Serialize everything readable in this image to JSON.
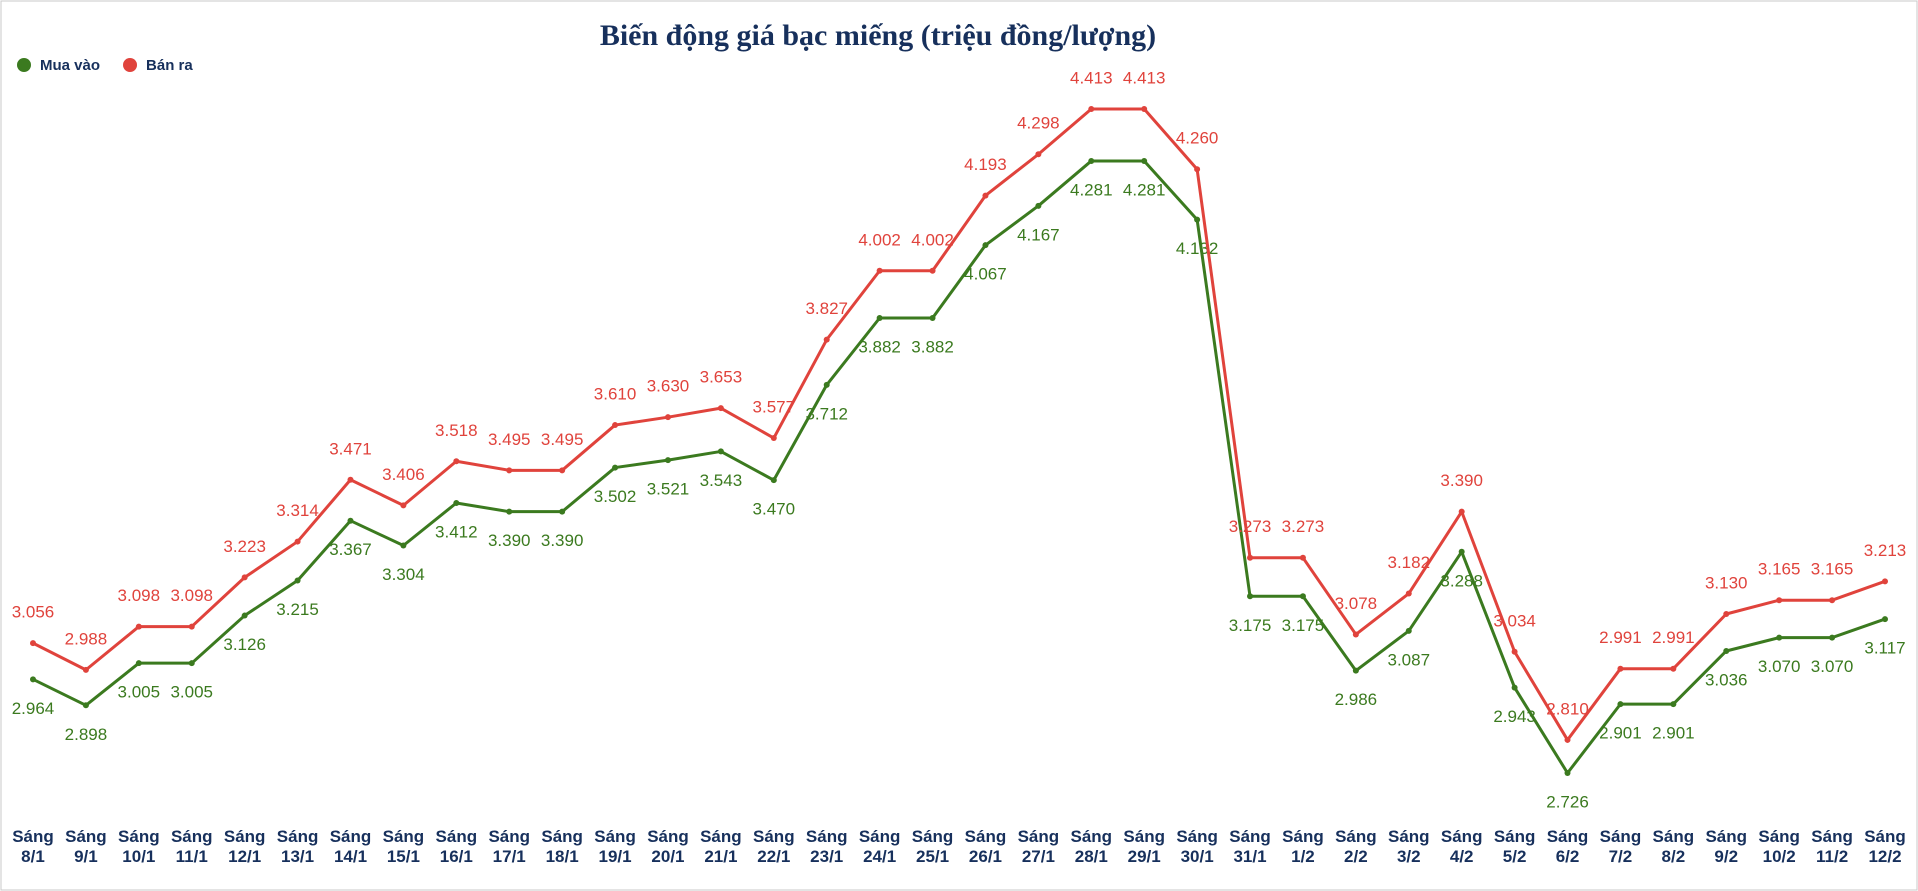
{
  "chart_data": {
    "type": "line",
    "title": "Biến động giá bạc miếng (triệu đồng/lượng)",
    "categories": [
      "Sáng 8/1",
      "Sáng 9/1",
      "Sáng 10/1",
      "Sáng 11/1",
      "Sáng 12/1",
      "Sáng 13/1",
      "Sáng 14/1",
      "Sáng 15/1",
      "Sáng 16/1",
      "Sáng 17/1",
      "Sáng 18/1",
      "Sáng 19/1",
      "Sáng 20/1",
      "Sáng 21/1",
      "Sáng 22/1",
      "Sáng 23/1",
      "Sáng 24/1",
      "Sáng 25/1",
      "Sáng 26/1",
      "Sáng 27/1",
      "Sáng 28/1",
      "Sáng 29/1",
      "Sáng 30/1",
      "Sáng 31/1",
      "Sáng 1/2",
      "Sáng 2/2",
      "Sáng 3/2",
      "Sáng 4/2",
      "Sáng 5/2",
      "Sáng 6/2",
      "Sáng 7/2",
      "Sáng 8/2",
      "Sáng 9/2",
      "Sáng 10/2",
      "Sáng 11/2",
      "Sáng 12/2"
    ],
    "series": [
      {
        "name": "Mua vào",
        "color": "#3b7a1f",
        "values": [
          2.964,
          2.898,
          3.005,
          3.005,
          3.126,
          3.215,
          3.367,
          3.304,
          3.412,
          3.39,
          3.39,
          3.502,
          3.521,
          3.543,
          3.47,
          3.712,
          3.882,
          3.882,
          4.067,
          4.167,
          4.281,
          4.281,
          4.132,
          3.175,
          3.175,
          2.986,
          3.087,
          3.288,
          2.943,
          2.726,
          2.901,
          2.901,
          3.036,
          3.07,
          3.07,
          3.117
        ],
        "value_labels": [
          "2.964",
          "2.898",
          "3.005",
          "3.005",
          "3.126",
          "3.215",
          "3.367",
          "3.304",
          "3.412",
          "3.390",
          "3.390",
          "3.502",
          "3.521",
          "3.543",
          "3.470",
          "3.712",
          "3.882",
          "3.882",
          "4.067",
          "4.167",
          "4.281",
          "4.281",
          "4.132",
          "3.175",
          "3.175",
          "2.986",
          "3.087",
          "3.288",
          "2.943",
          "2.726",
          "2.901",
          "2.901",
          "3.036",
          "3.070",
          "3.070",
          "3.117"
        ]
      },
      {
        "name": "Bán ra",
        "color": "#e0433c",
        "values": [
          3.056,
          2.988,
          3.098,
          3.098,
          3.223,
          3.314,
          3.471,
          3.406,
          3.518,
          3.495,
          3.495,
          3.61,
          3.63,
          3.653,
          3.577,
          3.827,
          4.002,
          4.002,
          4.193,
          4.298,
          4.413,
          4.413,
          4.26,
          3.273,
          3.273,
          3.078,
          3.182,
          3.39,
          3.034,
          2.81,
          2.991,
          2.991,
          3.13,
          3.165,
          3.165,
          3.213
        ],
        "value_labels": [
          "3.056",
          "2.988",
          "3.098",
          "3.098",
          "3.223",
          "3.314",
          "3.471",
          "3.406",
          "3.518",
          "3.495",
          "3.495",
          "3.610",
          "3.630",
          "3.653",
          "3.577",
          "3.827",
          "4.002",
          "4.002",
          "4.193",
          "4.298",
          "4.413",
          "4.413",
          "4.260",
          "3.273",
          "3.273",
          "3.078",
          "3.182",
          "3.390",
          "3.034",
          "2.810",
          "2.991",
          "2.991",
          "3.130",
          "3.165",
          "3.165",
          "3.213"
        ]
      }
    ]
  }
}
